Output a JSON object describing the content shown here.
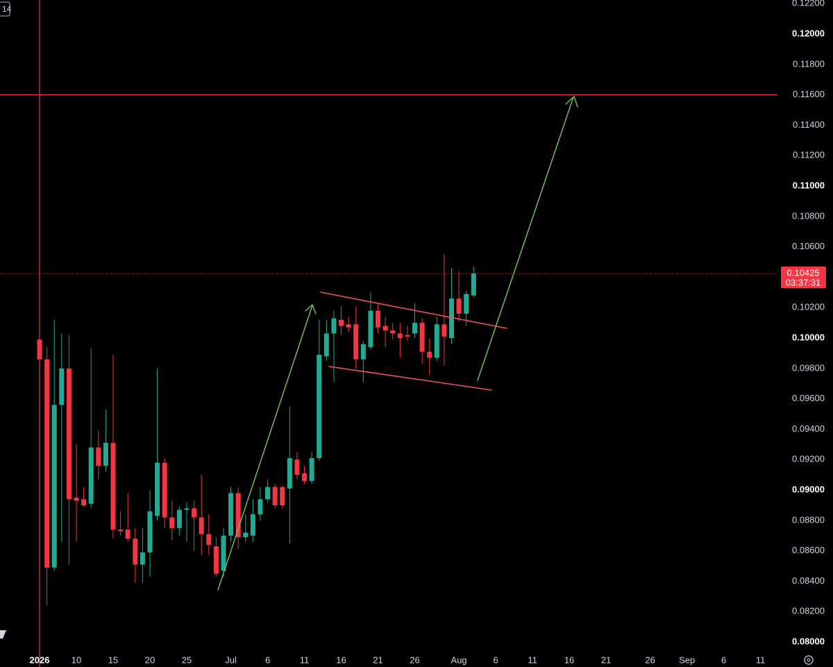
{
  "corner_label": "14",
  "chart_data": {
    "type": "candlestick",
    "up_color": "#22ab94",
    "down_color": "#f23645",
    "x": [
      0,
      1,
      2,
      3,
      4,
      5,
      6,
      7,
      8,
      9,
      10,
      11,
      12,
      13,
      14,
      15,
      16,
      17,
      18,
      19,
      20,
      21,
      22,
      23,
      24,
      25,
      26,
      27,
      28,
      29,
      30,
      31,
      32,
      33,
      34,
      35,
      36,
      37,
      38,
      39,
      40,
      41,
      42,
      43,
      44,
      45,
      46,
      47,
      48,
      49,
      50,
      51,
      52,
      53,
      54,
      55,
      56,
      57,
      58,
      59
    ],
    "open": [
      0.0999,
      0.0986,
      0.0849,
      0.0956,
      0.098,
      0.0895,
      0.0894,
      0.0891,
      0.0928,
      0.0916,
      0.0931,
      0.0874,
      0.0874,
      0.0868,
      0.0851,
      0.0859,
      0.0883,
      0.0918,
      0.0882,
      0.0875,
      0.0887,
      0.0888,
      0.0882,
      0.0871,
      0.0863,
      0.0847,
      0.087,
      0.0898,
      0.0869,
      0.087,
      0.0884,
      0.0894,
      0.0902,
      0.0902,
      0.0901,
      0.092,
      0.0911,
      0.0906,
      0.0921,
      0.0988,
      0.1003,
      0.1012,
      0.1009,
      0.1009,
      0.0986,
      0.0994,
      0.1018,
      0.1008,
      0.1005,
      0.1003,
      0.1002,
      0.1003,
      0.101,
      0.0991,
      0.0987,
      0.1009,
      0.1,
      0.1026,
      0.1016,
      0.1028
    ],
    "high": [
      0.1012,
      0.0994,
      0.1012,
      0.1003,
      0.1002,
      0.093,
      0.0902,
      0.0993,
      0.0939,
      0.0953,
      0.0989,
      0.0886,
      0.0898,
      0.0875,
      0.0875,
      0.09,
      0.098,
      0.0921,
      0.0893,
      0.0889,
      0.0892,
      0.0893,
      0.091,
      0.0884,
      0.0869,
      0.0875,
      0.0902,
      0.0902,
      0.0884,
      0.0894,
      0.0902,
      0.0907,
      0.0904,
      0.0903,
      0.0955,
      0.0925,
      0.0916,
      0.0925,
      0.1012,
      0.1012,
      0.1018,
      0.1021,
      0.1014,
      0.1021,
      0.0998,
      0.103,
      0.1023,
      0.1014,
      0.101,
      0.101,
      0.1008,
      0.1023,
      0.1013,
      0.1,
      0.1014,
      0.1055,
      0.1046,
      0.1044,
      0.1031,
      0.1047
    ],
    "low": [
      0.0985,
      0.0824,
      0.0847,
      0.0866,
      0.0851,
      0.0866,
      0.0889,
      0.0888,
      0.0907,
      0.0912,
      0.0868,
      0.087,
      0.0866,
      0.0839,
      0.0839,
      0.0843,
      0.088,
      0.0875,
      0.0867,
      0.087,
      0.0866,
      0.086,
      0.0857,
      0.0857,
      0.0843,
      0.0843,
      0.0866,
      0.0861,
      0.0866,
      0.0866,
      0.088,
      0.0892,
      0.0888,
      0.0888,
      0.0865,
      0.0907,
      0.0904,
      0.0904,
      0.0919,
      0.0985,
      0.0971,
      0.1002,
      0.1004,
      0.098,
      0.0971,
      0.0992,
      0.1003,
      0.0994,
      0.0999,
      0.0987,
      0.0998,
      0.1,
      0.0983,
      0.0976,
      0.0985,
      0.0982,
      0.0996,
      0.1011,
      0.1008,
      0.1027
    ],
    "close": [
      0.0986,
      0.0849,
      0.0956,
      0.098,
      0.0894,
      0.0893,
      0.089,
      0.0928,
      0.0916,
      0.0931,
      0.0874,
      0.0873,
      0.0868,
      0.0851,
      0.0859,
      0.0886,
      0.0918,
      0.0882,
      0.0875,
      0.0887,
      0.0888,
      0.0882,
      0.0871,
      0.0864,
      0.0845,
      0.087,
      0.0898,
      0.0869,
      0.0872,
      0.0884,
      0.0894,
      0.0902,
      0.089,
      0.089,
      0.0921,
      0.091,
      0.0906,
      0.0921,
      0.0989,
      0.1003,
      0.1013,
      0.1008,
      0.1007,
      0.0986,
      0.0996,
      0.1018,
      0.1007,
      0.1005,
      0.1003,
      0.1,
      0.1001,
      0.101,
      0.0991,
      0.0987,
      0.1009,
      0.1001,
      0.1026,
      0.1016,
      0.1029,
      0.10425
    ],
    "xlim": [
      -5.38,
      100.3
    ],
    "xticks": [
      {
        "value": 0,
        "label": "2026"
      },
      {
        "value": 5,
        "label": "10"
      },
      {
        "value": 10,
        "label": "15"
      },
      {
        "value": 15,
        "label": "20"
      },
      {
        "value": 20,
        "label": "25"
      },
      {
        "value": 26,
        "label": "Jul"
      },
      {
        "value": 31,
        "label": "6"
      },
      {
        "value": 36,
        "label": "11"
      },
      {
        "value": 41,
        "label": "16"
      },
      {
        "value": 46,
        "label": "21"
      },
      {
        "value": 51,
        "label": "26"
      },
      {
        "value": 57,
        "label": "Aug"
      },
      {
        "value": 62,
        "label": "6"
      },
      {
        "value": 67,
        "label": "11"
      },
      {
        "value": 72,
        "label": "16"
      },
      {
        "value": 77,
        "label": "21"
      },
      {
        "value": 83,
        "label": "26"
      },
      {
        "value": 88,
        "label": "Sep"
      },
      {
        "value": 93,
        "label": "6"
      },
      {
        "value": 98,
        "label": "11"
      }
    ],
    "ylim": [
      0.07941,
      0.12224
    ],
    "yticks": [
      {
        "value": 0.08,
        "label": "0.08000"
      },
      {
        "value": 0.082,
        "label": "0.08200"
      },
      {
        "value": 0.084,
        "label": "0.08400"
      },
      {
        "value": 0.086,
        "label": "0.08600"
      },
      {
        "value": 0.088,
        "label": "0.08800"
      },
      {
        "value": 0.09,
        "label": "0.09000"
      },
      {
        "value": 0.092,
        "label": "0.09200"
      },
      {
        "value": 0.094,
        "label": "0.09400"
      },
      {
        "value": 0.096,
        "label": "0.09600"
      },
      {
        "value": 0.098,
        "label": "0.09800"
      },
      {
        "value": 0.1,
        "label": "0.10000"
      },
      {
        "value": 0.102,
        "label": "0.10200"
      },
      {
        "value": 0.104,
        "label": "0.10400"
      },
      {
        "value": 0.106,
        "label": "0.10600"
      },
      {
        "value": 0.108,
        "label": "0.10800"
      },
      {
        "value": 0.11,
        "label": "0.11000"
      },
      {
        "value": 0.112,
        "label": "0.11200"
      },
      {
        "value": 0.114,
        "label": "0.11400"
      },
      {
        "value": 0.116,
        "label": "0.11600"
      },
      {
        "value": 0.118,
        "label": "0.11800"
      },
      {
        "value": 0.12,
        "label": "0.12000"
      },
      {
        "value": 0.122,
        "label": "0.12200"
      }
    ],
    "hlines": [
      0.116
    ],
    "vlines": [
      0
    ],
    "line_color": "#f23645",
    "last_price": 0.10425,
    "countdown": "03:37:31",
    "grid": false
  }
}
